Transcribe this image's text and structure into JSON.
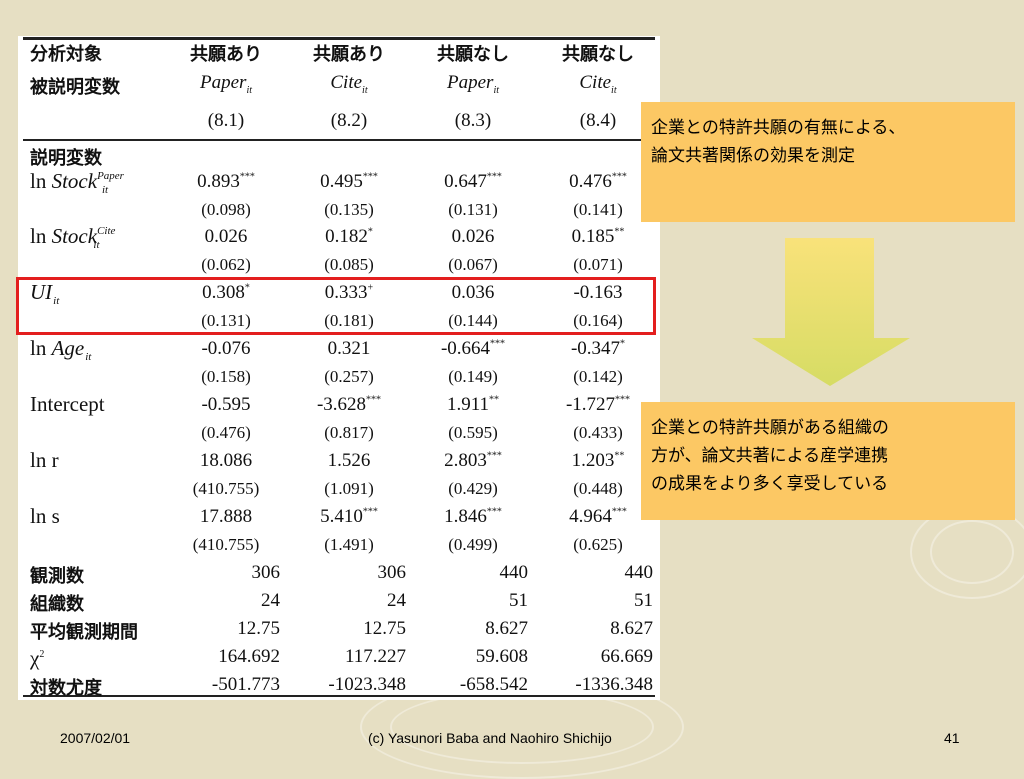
{
  "colors": {
    "accent_red": "#e31e1e",
    "callout": "#fcc864",
    "background": "#e6dfc3"
  },
  "header": {
    "row1_label": "分析対象",
    "row2_label": "被説明変数",
    "columns": [
      {
        "group": "共願あり",
        "dep_var": "Paper",
        "dep_sub": "it",
        "model": "(8.1)"
      },
      {
        "group": "共願あり",
        "dep_var": "Cite",
        "dep_sub": "it",
        "model": "(8.2)"
      },
      {
        "group": "共願なし",
        "dep_var": "Paper",
        "dep_sub": "it",
        "model": "(8.3)"
      },
      {
        "group": "共願なし",
        "dep_var": "Cite",
        "dep_sub": "it",
        "model": "(8.4)"
      }
    ]
  },
  "section_label": "説明変数",
  "rows": [
    {
      "label_pre": "ln ",
      "label_main": "Stock",
      "label_sup": "Paper",
      "label_sub": "it",
      "coef": [
        "0.893",
        "0.495",
        "0.647",
        "0.476"
      ],
      "stars": [
        "***",
        "***",
        "***",
        "***"
      ],
      "se": [
        "(0.098)",
        "(0.135)",
        "(0.131)",
        "(0.141)"
      ]
    },
    {
      "label_pre": "ln ",
      "label_main": "Stock",
      "label_sup": "Cite",
      "label_sub": "it",
      "coef": [
        "0.026",
        "0.182",
        "0.026",
        "0.185"
      ],
      "stars": [
        "",
        "*",
        "",
        "**"
      ],
      "se": [
        "(0.062)",
        "(0.085)",
        "(0.067)",
        "(0.071)"
      ]
    },
    {
      "label_pre": "",
      "label_main": "UI",
      "label_sup": "",
      "label_sub": "it",
      "coef": [
        "0.308",
        "0.333",
        "0.036",
        "-0.163"
      ],
      "stars": [
        "*",
        "+",
        "",
        ""
      ],
      "se": [
        "(0.131)",
        "(0.181)",
        "(0.144)",
        "(0.164)"
      ]
    },
    {
      "label_pre": "ln ",
      "label_main": "Age",
      "label_sup": "",
      "label_sub": "it",
      "coef": [
        "-0.076",
        "0.321",
        "-0.664",
        "-0.347"
      ],
      "stars": [
        "",
        "",
        "***",
        "*"
      ],
      "se": [
        "(0.158)",
        "(0.257)",
        "(0.149)",
        "(0.142)"
      ]
    },
    {
      "label_pre": "Intercept",
      "label_main": "",
      "label_sup": "",
      "label_sub": "",
      "coef": [
        "-0.595",
        "-3.628",
        "1.911",
        "-1.727"
      ],
      "stars": [
        "",
        "***",
        "**",
        "***"
      ],
      "se": [
        "(0.476)",
        "(0.817)",
        "(0.595)",
        "(0.433)"
      ]
    },
    {
      "label_pre": "ln r",
      "label_main": "",
      "label_sup": "",
      "label_sub": "",
      "coef": [
        "18.086",
        "1.526",
        "2.803",
        "1.203"
      ],
      "stars": [
        "",
        "",
        "***",
        "**"
      ],
      "se": [
        "(410.755)",
        "(1.091)",
        "(0.429)",
        "(0.448)"
      ]
    },
    {
      "label_pre": "ln s",
      "label_main": "",
      "label_sup": "",
      "label_sub": "",
      "coef": [
        "17.888",
        "5.410",
        "1.846",
        "4.964"
      ],
      "stars": [
        "",
        "***",
        "***",
        "***"
      ],
      "se": [
        "(410.755)",
        "(1.491)",
        "(0.499)",
        "(0.625)"
      ]
    }
  ],
  "stats": [
    {
      "label": "観測数",
      "values": [
        "306",
        "306",
        "440",
        "440"
      ]
    },
    {
      "label": "組織数",
      "values": [
        "24",
        "24",
        "51",
        "51"
      ]
    },
    {
      "label": "平均観測期間",
      "values": [
        "12.75",
        "12.75",
        "8.627",
        "8.627"
      ]
    },
    {
      "label": "χ",
      "label_sup": "2",
      "values": [
        "164.692",
        "117.227",
        "59.608",
        "66.669"
      ]
    },
    {
      "label": "対数尤度",
      "values": [
        "-501.773",
        "-1023.348",
        "-658.542",
        "-1336.348"
      ]
    }
  ],
  "callouts": {
    "top": [
      "企業との特許共願の有無による、",
      "論文共著関係の効果を測定"
    ],
    "bottom": [
      "企業との特許共願がある組織の",
      "方が、論文共著による産学連携",
      "の成果をより多く享受している"
    ]
  },
  "footer": {
    "date": "2007/02/01",
    "credit": "(c) Yasunori Baba and Naohiro Shichijo",
    "page": "41"
  }
}
